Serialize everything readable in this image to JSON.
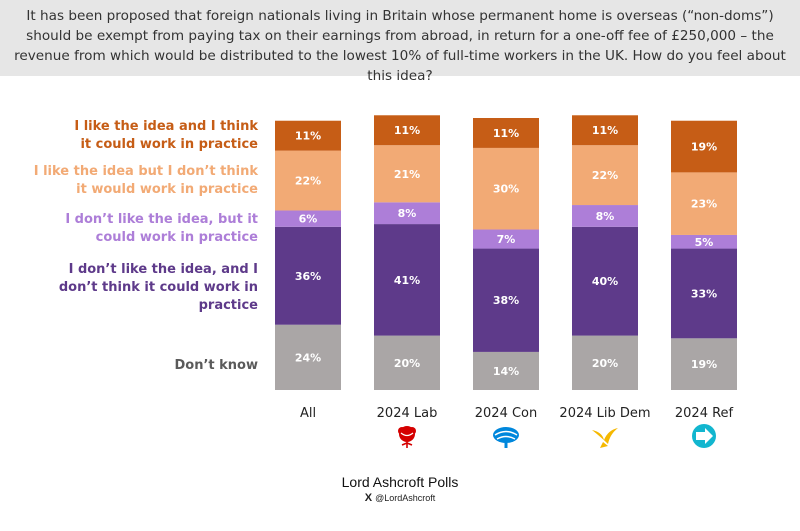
{
  "question": "It has been proposed that foreign nationals living in Britain whose permanent home is overseas (“non-doms”) should be exempt from paying tax on their earnings from abroad, in return for a one-off fee of £250,000 – the revenue from which would be distributed to the lowest 10% of full-time workers in the UK. How do you feel about this idea?",
  "chart_data": {
    "type": "bar",
    "stacked": true,
    "percent_format": "{v}%",
    "categories": [
      "All",
      "2024 Lab",
      "2024 Con",
      "2024 Lib Dem",
      "2024 Ref"
    ],
    "category_icons": [
      "",
      "labour-rose-icon",
      "conservative-tree-icon",
      "libdem-bird-icon",
      "reform-arrow-icon"
    ],
    "series": [
      {
        "name": "Don’t know",
        "color": "#aaa6a6",
        "label_color": "#5a5a5a",
        "values": [
          24,
          20,
          14,
          20,
          19
        ]
      },
      {
        "name": "I don’t like the idea, and I don’t think it could work in practice",
        "color": "#5e3a8a",
        "label_color": "#5e3a8a",
        "values": [
          36,
          41,
          38,
          40,
          33
        ]
      },
      {
        "name": "I don’t like the idea, but it could work in practice",
        "color": "#ad7ed8",
        "label_color": "#ad7ed8",
        "values": [
          6,
          8,
          7,
          8,
          5
        ]
      },
      {
        "name": "I like the idea but I don’t think it would work in practice",
        "color": "#f2aa75",
        "label_color": "#f2aa75",
        "values": [
          22,
          21,
          30,
          22,
          23
        ]
      },
      {
        "name": "I like the idea and I think it could work in practice",
        "color": "#c65d16",
        "label_color": "#c65d16",
        "values": [
          11,
          11,
          11,
          11,
          19
        ]
      }
    ],
    "legend_placement": "left",
    "grid": false
  },
  "legend_lines": [
    [
      "I like the idea and I think",
      "it could work in practice"
    ],
    [
      "I like the idea but I don’t think",
      "it would work in practice"
    ],
    [
      "I don’t like the idea, but it",
      "could work in practice"
    ],
    [
      "I don’t like the idea, and I",
      "don’t think it could work in",
      "practice"
    ],
    [
      "Don’t know"
    ]
  ],
  "icon_colors": {
    "labour-rose-icon": "#d50000",
    "conservative-tree-icon": "#0087dc",
    "libdem-bird-icon": "#f5b800",
    "reform-arrow-icon": "#12b6cf"
  },
  "footer": {
    "brand": "Lord Ashcroft Polls",
    "x_icon": "X",
    "handle": "@LordAshcroft"
  }
}
